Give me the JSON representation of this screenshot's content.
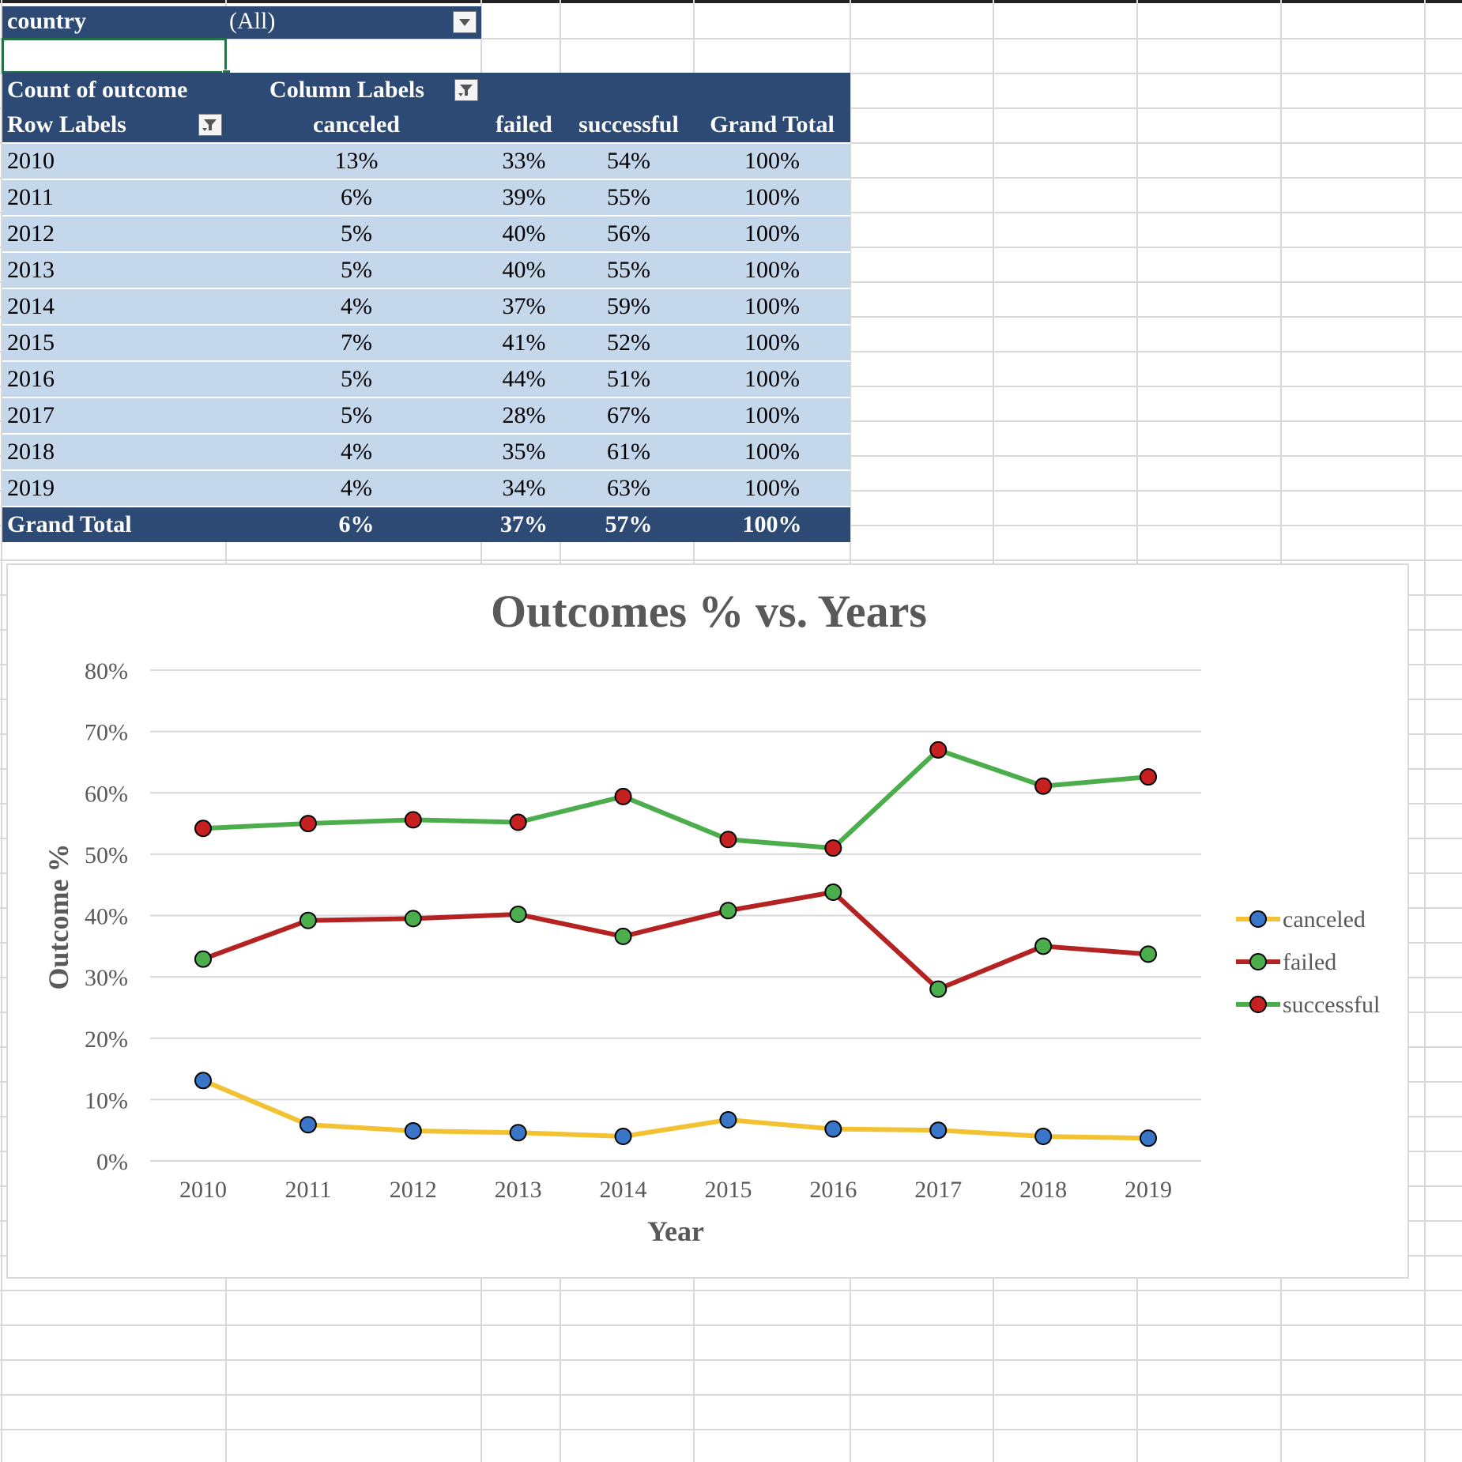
{
  "report_filter": {
    "field": "country",
    "value": "(All)"
  },
  "pivot": {
    "value_label": "Count of outcome",
    "column_labels": "Column Labels",
    "row_labels": "Row Labels",
    "columns": [
      "canceled",
      "failed",
      "successful",
      "Grand Total"
    ],
    "rows": [
      {
        "year": "2010",
        "canceled": "13%",
        "failed": "33%",
        "successful": "54%",
        "total": "100%"
      },
      {
        "year": "2011",
        "canceled": "6%",
        "failed": "39%",
        "successful": "55%",
        "total": "100%"
      },
      {
        "year": "2012",
        "canceled": "5%",
        "failed": "40%",
        "successful": "56%",
        "total": "100%"
      },
      {
        "year": "2013",
        "canceled": "5%",
        "failed": "40%",
        "successful": "55%",
        "total": "100%"
      },
      {
        "year": "2014",
        "canceled": "4%",
        "failed": "37%",
        "successful": "59%",
        "total": "100%"
      },
      {
        "year": "2015",
        "canceled": "7%",
        "failed": "41%",
        "successful": "52%",
        "total": "100%"
      },
      {
        "year": "2016",
        "canceled": "5%",
        "failed": "44%",
        "successful": "51%",
        "total": "100%"
      },
      {
        "year": "2017",
        "canceled": "5%",
        "failed": "28%",
        "successful": "67%",
        "total": "100%"
      },
      {
        "year": "2018",
        "canceled": "4%",
        "failed": "35%",
        "successful": "61%",
        "total": "100%"
      },
      {
        "year": "2019",
        "canceled": "4%",
        "failed": "34%",
        "successful": "63%",
        "total": "100%"
      }
    ],
    "grand_total": {
      "label": "Grand Total",
      "canceled": "6%",
      "failed": "37%",
      "successful": "57%",
      "total": "100%"
    }
  },
  "chart_data": {
    "type": "line",
    "title": "Outcomes % vs. Years",
    "xlabel": "Year",
    "ylabel": "Outcome %",
    "categories": [
      "2010",
      "2011",
      "2012",
      "2013",
      "2014",
      "2015",
      "2016",
      "2017",
      "2018",
      "2019"
    ],
    "ylim": [
      0,
      80
    ],
    "yticks": [
      "0%",
      "10%",
      "20%",
      "30%",
      "40%",
      "50%",
      "60%",
      "70%",
      "80%"
    ],
    "grid": true,
    "legend_position": "right",
    "series": [
      {
        "name": "canceled",
        "values": [
          13.1,
          5.9,
          4.9,
          4.6,
          4.0,
          6.7,
          5.2,
          5.0,
          4.0,
          3.7
        ],
        "line_color": "#f2c232",
        "marker_color": "#3a76c8"
      },
      {
        "name": "failed",
        "values": [
          32.9,
          39.2,
          39.5,
          40.2,
          36.6,
          40.8,
          43.8,
          28.0,
          35.0,
          33.7
        ],
        "line_color": "#b52222",
        "marker_color": "#4cad4c"
      },
      {
        "name": "successful",
        "values": [
          54.2,
          55.0,
          55.6,
          55.2,
          59.4,
          52.4,
          51.0,
          67.0,
          61.1,
          62.6
        ],
        "line_color": "#4cad4c",
        "marker_color": "#c72020"
      }
    ]
  },
  "colors": {
    "header_navy": "#2d4a75",
    "body_light": "#c5d7eb",
    "selection_green": "#217346"
  }
}
